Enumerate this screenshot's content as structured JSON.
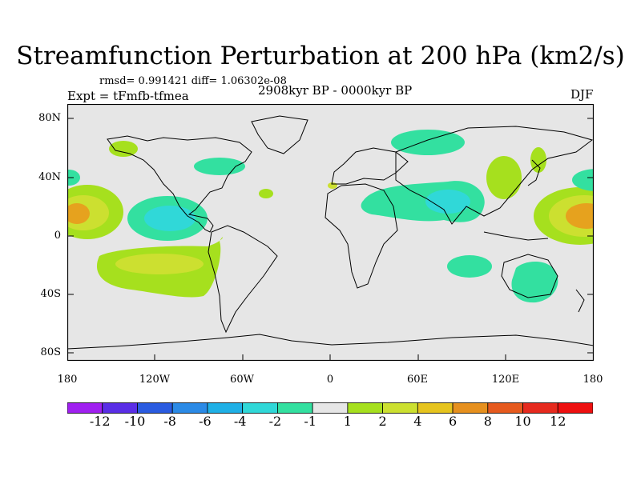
{
  "title": "Streamfunction Perturbation at 200 hPa (km2/s)",
  "stats": "rmsd= 0.991421 diff= 1.06302e-08",
  "experiment": "Expt = tFmfb-tfmea",
  "period": "2908kyr BP - 0000kyr BP",
  "season": "DJF",
  "map": {
    "background_color": "#e6e6e6",
    "lat_ticks": [
      "80N",
      "40N",
      "0",
      "40S",
      "80S"
    ],
    "lon_ticks": [
      "180",
      "120W",
      "60W",
      "0",
      "60E",
      "120E",
      "180"
    ]
  },
  "colorbar": {
    "labels": [
      "-12",
      "-10",
      "-8",
      "-6",
      "-4",
      "-2",
      "-1",
      "1",
      "2",
      "4",
      "6",
      "8",
      "10",
      "12"
    ],
    "colors": [
      "#a020f0",
      "#5a2ee6",
      "#2a5be0",
      "#2b8ae6",
      "#1fb0e6",
      "#30d8d8",
      "#33e0a0",
      "#e6e6e6",
      "#a6e01e",
      "#cce030",
      "#e6c41e",
      "#e6901e",
      "#e65a1e",
      "#e62a1e",
      "#ee1010"
    ]
  }
}
